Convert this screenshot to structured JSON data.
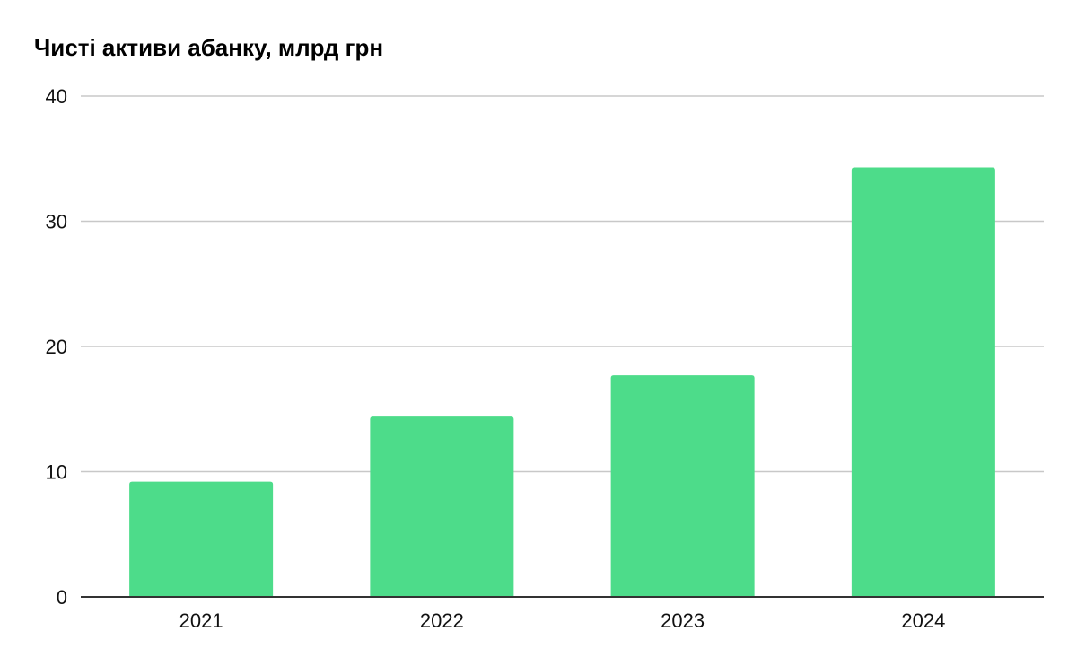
{
  "chart_data": {
    "type": "bar",
    "title": "Чисті активи абанку, млрд грн",
    "xlabel": "",
    "ylabel": "",
    "categories": [
      "2021",
      "2022",
      "2023",
      "2024"
    ],
    "values": [
      9.2,
      14.4,
      17.7,
      34.3
    ],
    "ylim": [
      0,
      40
    ],
    "yticks": [
      "0",
      "10",
      "20",
      "30",
      "40"
    ],
    "grid": true,
    "legend": "none",
    "colors": {
      "bar": "#4ddc8a",
      "grid": "#c8c8c8",
      "axis": "#333333"
    }
  }
}
